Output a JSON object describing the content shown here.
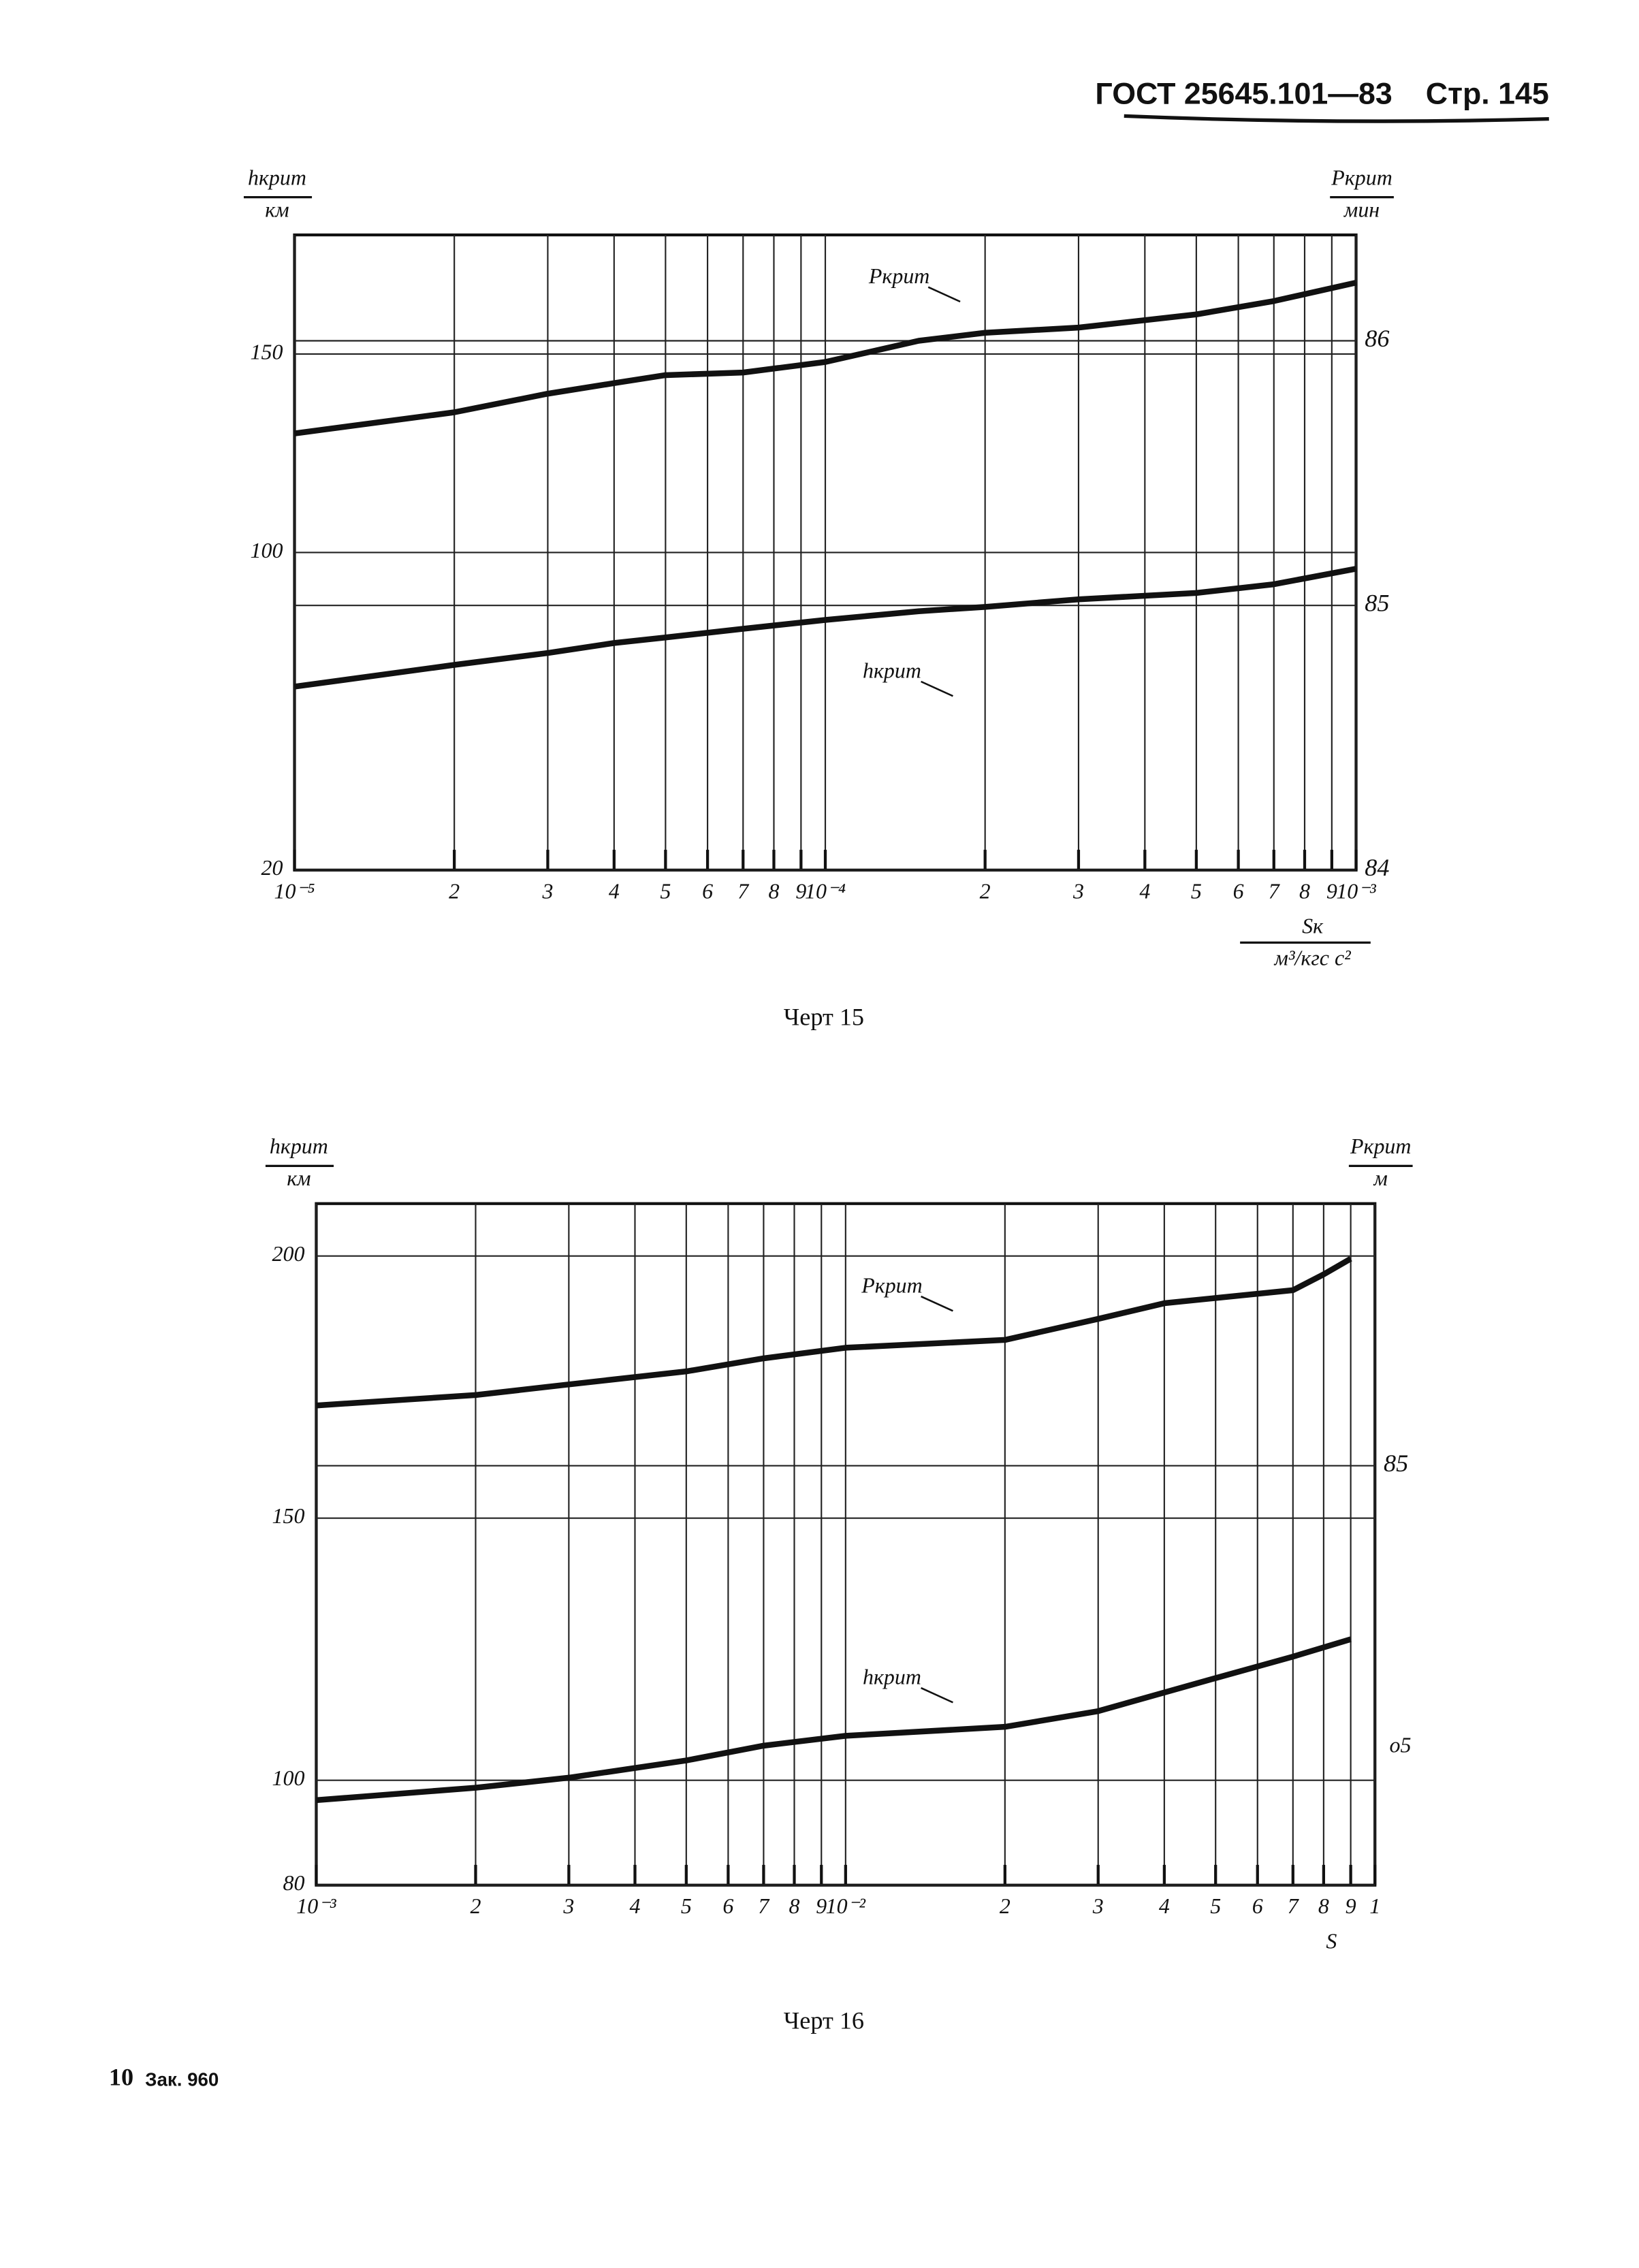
{
  "header": {
    "standard": "ГОСТ 25645.101—83",
    "page": "Стр. 145"
  },
  "footer": {
    "sheet": "10",
    "order": "Зак. 960"
  },
  "chart_data": [
    {
      "type": "line",
      "caption": "Черт 15",
      "y_label": "hкрит",
      "y_unit": "км",
      "y2_label": "Pкрит",
      "y2_unit": "мин",
      "x_label": "Sк",
      "x_unit": "м³/кгс с²",
      "log_x": true,
      "grid": true,
      "color": "#111111",
      "xlim": [
        1e-05,
        0.001
      ],
      "xticks": [
        {
          "value": 1e-05,
          "label": "10⁻⁵"
        },
        {
          "value": 2e-05,
          "label": "2"
        },
        {
          "value": 3e-05,
          "label": "3"
        },
        {
          "value": 4e-05,
          "label": "4"
        },
        {
          "value": 5e-05,
          "label": "5"
        },
        {
          "value": 6e-05,
          "label": "6"
        },
        {
          "value": 7e-05,
          "label": "7"
        },
        {
          "value": 8e-05,
          "label": "8"
        },
        {
          "value": 9e-05,
          "label": "9"
        },
        {
          "value": 0.0001,
          "label": "10⁻⁴"
        },
        {
          "value": 0.0002,
          "label": "2"
        },
        {
          "value": 0.0003,
          "label": "3"
        },
        {
          "value": 0.0004,
          "label": "4"
        },
        {
          "value": 0.0005,
          "label": "5"
        },
        {
          "value": 0.0006,
          "label": "6"
        },
        {
          "value": 0.0007,
          "label": "7"
        },
        {
          "value": 0.0008,
          "label": "8"
        },
        {
          "value": 0.0009,
          "label": "9"
        },
        {
          "value": 0.001,
          "label": "10⁻³"
        }
      ],
      "ylim": [
        20,
        180
      ],
      "yticks": [
        20,
        100,
        150
      ],
      "y2lim": [
        84,
        86.4
      ],
      "y2ticks": [
        84,
        85,
        86
      ],
      "series": [
        {
          "name": "Pкрит",
          "axis": "y2",
          "x": [
            1e-05,
            2e-05,
            3e-05,
            4e-05,
            5e-05,
            7e-05,
            0.0001,
            0.00015,
            0.0002,
            0.0003,
            0.0005,
            0.0007,
            0.001
          ],
          "values": [
            85.65,
            85.73,
            85.8,
            85.84,
            85.87,
            85.88,
            85.92,
            86.0,
            86.03,
            86.05,
            86.1,
            86.15,
            86.22
          ]
        },
        {
          "name": "hкрит",
          "x": [
            1e-05,
            2e-05,
            3e-05,
            4e-05,
            5e-05,
            7e-05,
            0.0001,
            0.00015,
            0.0002,
            0.0003,
            0.0005,
            0.0007,
            0.001
          ],
          "values": [
            66.2,
            71.7,
            74.7,
            77.2,
            78.6,
            80.8,
            83.0,
            85.2,
            86.3,
            88.2,
            89.8,
            92.0,
            95.9
          ]
        }
      ]
    },
    {
      "type": "line",
      "caption": "Черт 16",
      "y_label": "hкрит",
      "y_unit": "км",
      "y2_label": "Pкрит",
      "y2_unit": "м",
      "x_label": "S",
      "annotations": [
        "о5"
      ],
      "log_x": true,
      "grid": true,
      "color": "#111111",
      "xlim": [
        0.001,
        0.1
      ],
      "xticks": [
        {
          "value": 0.001,
          "label": "10⁻³"
        },
        {
          "value": 0.002,
          "label": "2"
        },
        {
          "value": 0.003,
          "label": "3"
        },
        {
          "value": 0.004,
          "label": "4"
        },
        {
          "value": 0.005,
          "label": "5"
        },
        {
          "value": 0.006,
          "label": "6"
        },
        {
          "value": 0.007,
          "label": "7"
        },
        {
          "value": 0.008,
          "label": "8"
        },
        {
          "value": 0.009,
          "label": "9"
        },
        {
          "value": 0.01,
          "label": "10⁻²"
        },
        {
          "value": 0.02,
          "label": "2"
        },
        {
          "value": 0.03,
          "label": "3"
        },
        {
          "value": 0.04,
          "label": "4"
        },
        {
          "value": 0.05,
          "label": "5"
        },
        {
          "value": 0.06,
          "label": "6"
        },
        {
          "value": 0.07,
          "label": "7"
        },
        {
          "value": 0.08,
          "label": "8"
        },
        {
          "value": 0.09,
          "label": "9"
        },
        {
          "value": 0.1,
          "label": "1"
        }
      ],
      "ylim": [
        80,
        210
      ],
      "yticks": [
        80,
        100,
        150,
        200
      ],
      "y2lim": [
        83.4,
        86.0
      ],
      "y2ticks": [
        85
      ],
      "series": [
        {
          "name": "Pкрит",
          "axis": "y2",
          "x": [
            0.001,
            0.002,
            0.003,
            0.005,
            0.007,
            0.01,
            0.02,
            0.03,
            0.04,
            0.05,
            0.07,
            0.08,
            0.09
          ],
          "values": [
            85.23,
            85.27,
            85.31,
            85.36,
            85.41,
            85.45,
            85.48,
            85.56,
            85.62,
            85.64,
            85.67,
            85.73,
            85.79
          ]
        },
        {
          "name": "hкрит",
          "x": [
            0.001,
            0.002,
            0.003,
            0.005,
            0.007,
            0.01,
            0.02,
            0.03,
            0.05,
            0.07,
            0.09
          ],
          "values": [
            96.2,
            98.6,
            100.5,
            103.8,
            106.6,
            108.5,
            110.2,
            113.2,
            119.5,
            123.6,
            126.9
          ]
        }
      ]
    }
  ]
}
